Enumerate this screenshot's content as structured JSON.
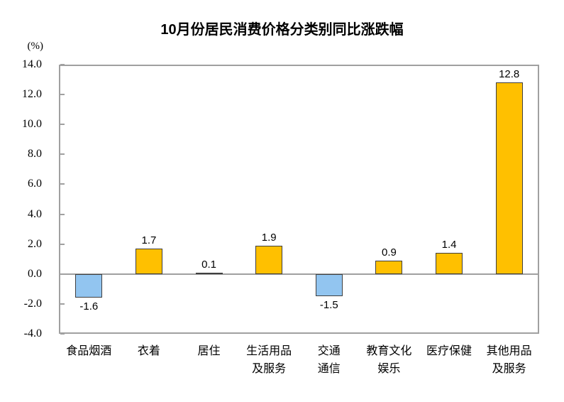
{
  "chart_data": {
    "type": "bar",
    "title": "10月份居民消费价格分类别同比涨跌幅",
    "unit_label": "(%)",
    "categories": [
      "食品烟酒",
      "衣着",
      "居住",
      "生活用品及服务",
      "交通通信",
      "教育文化娱乐",
      "医疗保健",
      "其他用品及服务"
    ],
    "category_lines": [
      [
        "食品烟酒"
      ],
      [
        "衣着"
      ],
      [
        "居住"
      ],
      [
        "生活用品",
        "及服务"
      ],
      [
        "交通",
        "通信"
      ],
      [
        "教育文化",
        "娱乐"
      ],
      [
        "医疗保健"
      ],
      [
        "其他用品",
        "及服务"
      ]
    ],
    "values": [
      -1.6,
      1.7,
      0.1,
      1.9,
      -1.5,
      0.9,
      1.4,
      12.8
    ],
    "value_labels": [
      "-1.6",
      "1.7",
      "0.1",
      "1.9",
      "-1.5",
      "0.9",
      "1.4",
      "12.8"
    ],
    "ylim": [
      -4.0,
      14.0
    ],
    "ytick_step": 2.0,
    "ytick_labels": [
      "14.0",
      "12.0",
      "10.0",
      "8.0",
      "6.0",
      "4.0",
      "2.0",
      "0.0",
      "-2.0",
      "-4.0"
    ],
    "xlabel": "",
    "ylabel": "(%)",
    "grid": false,
    "legend_position": "none",
    "colors": {
      "positive_bar": "#FFC000",
      "negative_bar": "#92C5F0",
      "bar_border": "#3f3f3f",
      "axis": "#a0a0a0",
      "text": "#000000",
      "background": "#ffffff"
    }
  }
}
